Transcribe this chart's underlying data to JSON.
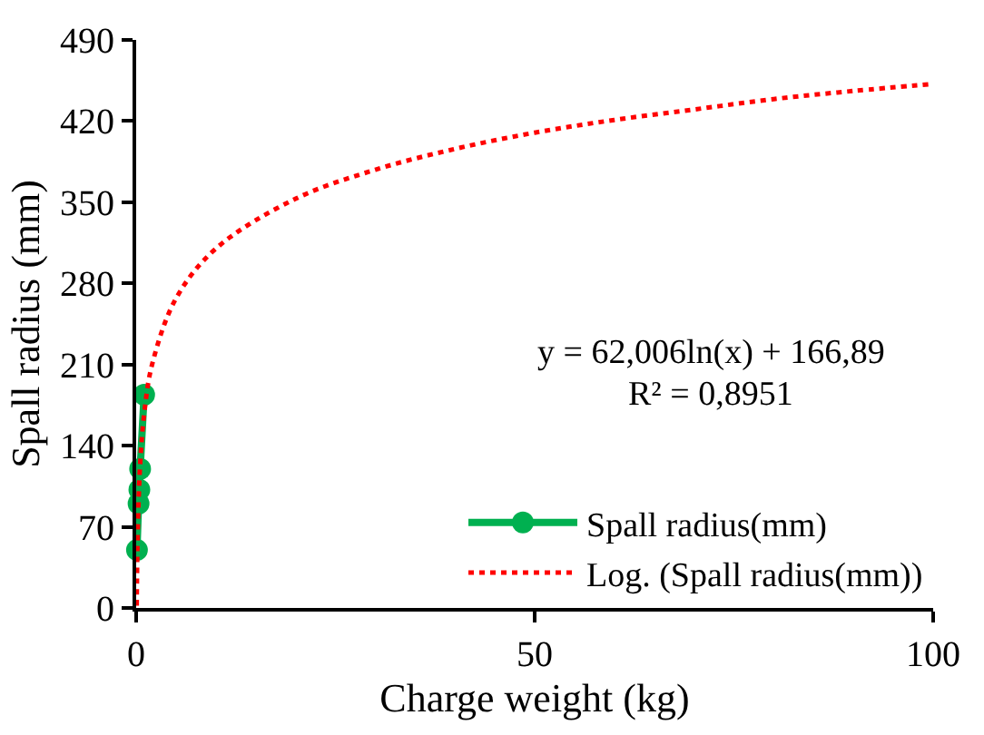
{
  "chart_data": {
    "type": "line",
    "xlabel": "Charge weight (kg)",
    "ylabel": "Spall radius (mm)",
    "xlim": [
      0,
      100
    ],
    "xticks": [
      0,
      50,
      100
    ],
    "ylim": [
      0,
      490
    ],
    "yticks": [
      0,
      70,
      140,
      210,
      280,
      350,
      420,
      490
    ],
    "legend": "bottom right",
    "series": [
      {
        "name": "Spall radius(mm)",
        "color": "#00b050",
        "marker": "circle",
        "line_style": "solid",
        "x": [
          0.1,
          0.3,
          0.4,
          0.5,
          1.0
        ],
        "values": [
          50,
          90,
          102,
          120,
          184
        ]
      },
      {
        "name": "Log. (Spall radius(mm))",
        "color": "#ff0000",
        "marker": "none",
        "line_style": "dotted",
        "x": [
          0.07,
          0.1,
          0.2,
          0.5,
          1,
          2,
          5,
          10,
          20,
          30,
          40,
          50,
          60,
          70,
          80,
          90,
          100
        ],
        "values": [
          2,
          24,
          67,
          124,
          167,
          210,
          267,
          310,
          353,
          378,
          396,
          410,
          421,
          430,
          439,
          446,
          452
        ]
      }
    ],
    "annotations": [
      "y = 62,006ln(x) + 166,89",
      "R² = 0,8951"
    ]
  }
}
